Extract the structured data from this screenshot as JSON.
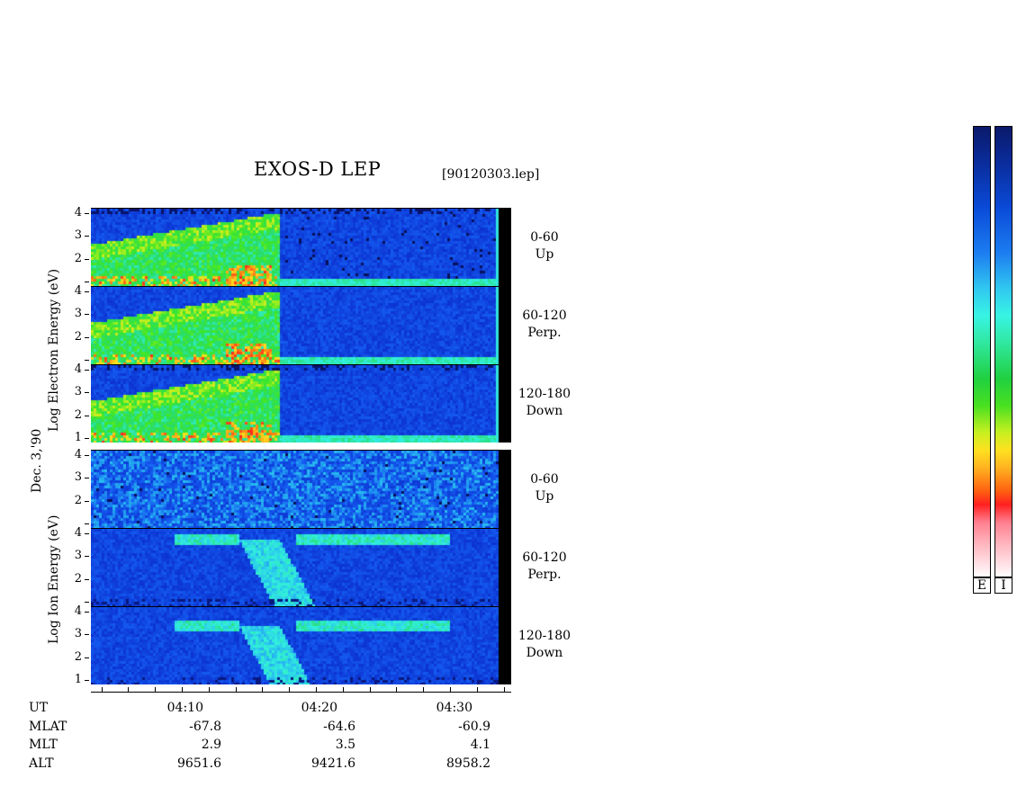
{
  "header": {
    "title": "EXOS-D LEP",
    "filename": "[90120303.lep]"
  },
  "date_label": "Dec. 3,'90",
  "electron_axis_label": "Log   Electron   Energy   (eV)",
  "ion_axis_label": "Log   Ion   Energy   (eV)",
  "chart_data": {
    "type": "heatmap",
    "y_ticks": [
      "1",
      "2",
      "3",
      "4"
    ],
    "panels": [
      {
        "species": "electron",
        "pitch_range": "0-60",
        "direction": "Up"
      },
      {
        "species": "electron",
        "pitch_range": "60-120",
        "direction": "Perp."
      },
      {
        "species": "electron",
        "pitch_range": "120-180",
        "direction": "Down"
      },
      {
        "species": "ion",
        "pitch_range": "0-60",
        "direction": "Up"
      },
      {
        "species": "ion",
        "pitch_range": "60-120",
        "direction": "Perp."
      },
      {
        "species": "ion",
        "pitch_range": "120-180",
        "direction": "Down"
      }
    ],
    "x_ticks": [
      "04:10",
      "04:20",
      "04:30"
    ],
    "colorbars": [
      "E",
      "I"
    ]
  },
  "ephemeris": {
    "labels": [
      "UT",
      "MLAT",
      "MLT",
      "ALT"
    ],
    "mlat": [
      "-67.8",
      "-64.6",
      "-60.9"
    ],
    "mlt": [
      "2.9",
      "3.5",
      "4.1"
    ],
    "alt": [
      "9651.6",
      "9421.6",
      "8958.2"
    ]
  }
}
